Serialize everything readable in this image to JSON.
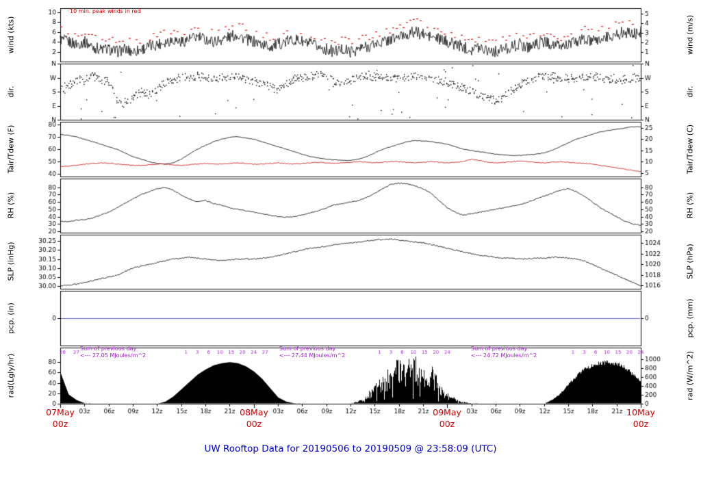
{
  "title": "UW Rooftop Data for 20190506  to  20190509 @ 23:58:09  (UTC)",
  "notes": {
    "peak_winds": "10 min. peak winds in red"
  },
  "colors": {
    "axis": "#000000",
    "trace": "#000000",
    "red": "#cc0000",
    "precip_blue": "#5050cc",
    "date_red": "#cc0000",
    "title_blue": "#0000cc",
    "annotation_purple": "#a21ccc"
  },
  "x_axis": {
    "hours_total": 72,
    "time_tick_labels": [
      "03z",
      "06z",
      "09z",
      "12z",
      "15z",
      "18z",
      "21z"
    ],
    "date_labels": [
      {
        "line1": "07May",
        "line2": "00z",
        "t": 0
      },
      {
        "line1": "08May",
        "line2": "00z",
        "t": 24
      },
      {
        "line1": "09May",
        "line2": "00z",
        "t": 48
      },
      {
        "line1": "10May",
        "line2": "00z",
        "t": 72
      }
    ]
  },
  "panels": [
    {
      "id": "wind",
      "left_label": "wind (kts)",
      "right_label": "wind (m/s)",
      "range": [
        0,
        10.8
      ],
      "left_ticks": [
        {
          "v": 10,
          "label": "10"
        },
        {
          "v": 8,
          "label": "8"
        },
        {
          "v": 6,
          "label": "6"
        },
        {
          "v": 4,
          "label": "4"
        },
        {
          "v": 2,
          "label": "2"
        }
      ],
      "right_ticks": [
        {
          "v": 9.72,
          "label": "5"
        },
        {
          "v": 7.78,
          "label": "4"
        },
        {
          "v": 5.83,
          "label": "3"
        },
        {
          "v": 3.89,
          "label": "2"
        },
        {
          "v": 1.94,
          "label": "1"
        }
      ]
    },
    {
      "id": "dir",
      "left_label": "dir.",
      "right_label": "dir.",
      "range": [
        0,
        360
      ],
      "left_ticks": [
        {
          "v": 360,
          "label": "N"
        },
        {
          "v": 270,
          "label": "W"
        },
        {
          "v": 180,
          "label": "S"
        },
        {
          "v": 90,
          "label": "E"
        },
        {
          "v": 0,
          "label": "N"
        }
      ],
      "right_ticks": [
        {
          "v": 360,
          "label": "N"
        },
        {
          "v": 270,
          "label": "W"
        },
        {
          "v": 180,
          "label": "S"
        },
        {
          "v": 90,
          "label": "E"
        },
        {
          "v": 0,
          "label": "N"
        }
      ]
    },
    {
      "id": "temp",
      "left_label": "Tair/Tdew (F)",
      "right_label": "Tair/Tdew (C)",
      "range": [
        38,
        82
      ],
      "left_ticks": [
        {
          "v": 80,
          "label": "80"
        },
        {
          "v": 70,
          "label": "70"
        },
        {
          "v": 60,
          "label": "60"
        },
        {
          "v": 50,
          "label": "50"
        },
        {
          "v": 40,
          "label": "40"
        }
      ],
      "right_ticks": [
        {
          "v": 77,
          "label": "25"
        },
        {
          "v": 68,
          "label": "20"
        },
        {
          "v": 59,
          "label": "15"
        },
        {
          "v": 50,
          "label": "10"
        },
        {
          "v": 41,
          "label": "5"
        }
      ]
    },
    {
      "id": "rh",
      "left_label": "RH (%)",
      "right_label": "RH (%)",
      "range": [
        18,
        92
      ],
      "left_ticks": [
        {
          "v": 80,
          "label": "80"
        },
        {
          "v": 70,
          "label": "70"
        },
        {
          "v": 60,
          "label": "60"
        },
        {
          "v": 50,
          "label": "50"
        },
        {
          "v": 40,
          "label": "40"
        },
        {
          "v": 30,
          "label": "30"
        },
        {
          "v": 20,
          "label": "20"
        }
      ],
      "right_ticks": [
        {
          "v": 80,
          "label": "80"
        },
        {
          "v": 70,
          "label": "70"
        },
        {
          "v": 60,
          "label": "60"
        },
        {
          "v": 50,
          "label": "50"
        },
        {
          "v": 40,
          "label": "40"
        },
        {
          "v": 30,
          "label": "30"
        },
        {
          "v": 20,
          "label": "20"
        }
      ]
    },
    {
      "id": "slp",
      "left_label": "SLP (inHg)",
      "right_label": "SLP (hPa)",
      "range": [
        29.985,
        30.285
      ],
      "left_ticks": [
        {
          "v": 30.25,
          "label": "30.25"
        },
        {
          "v": 30.2,
          "label": "30.20"
        },
        {
          "v": 30.15,
          "label": "30.15"
        },
        {
          "v": 30.1,
          "label": "30.10"
        },
        {
          "v": 30.05,
          "label": "30.05"
        },
        {
          "v": 30.0,
          "label": "30.00"
        }
      ],
      "right_ticks": [
        {
          "v": 30.2388,
          "label": "1024"
        },
        {
          "v": 30.1797,
          "label": "1022"
        },
        {
          "v": 30.1207,
          "label": "1020"
        },
        {
          "v": 30.0616,
          "label": "1018"
        },
        {
          "v": 30.0025,
          "label": "1016"
        }
      ]
    },
    {
      "id": "pcp",
      "left_label": "pcp. (in)",
      "right_label": "pcp. (mm)",
      "range": [
        -1,
        1
      ],
      "left_ticks": [
        {
          "v": 0,
          "label": "0"
        }
      ],
      "right_ticks": [
        {
          "v": 0,
          "label": "0"
        }
      ]
    },
    {
      "id": "rad",
      "left_label": "rad(Lgly/hr)",
      "right_label": "rad (W/m^2)",
      "range": [
        0,
        108
      ],
      "left_ticks": [
        {
          "v": 80,
          "label": "80"
        },
        {
          "v": 60,
          "label": "60"
        },
        {
          "v": 40,
          "label": "40"
        },
        {
          "v": 20,
          "label": "20"
        },
        {
          "v": 0,
          "label": "0"
        }
      ],
      "right_ticks": [
        {
          "v": 86.0,
          "label": "1000"
        },
        {
          "v": 68.8,
          "label": "800"
        },
        {
          "v": 51.6,
          "label": "600"
        },
        {
          "v": 34.4,
          "label": "400"
        },
        {
          "v": 17.2,
          "label": "200"
        },
        {
          "v": 0,
          "label": "0"
        }
      ]
    }
  ],
  "chart_data": {
    "type": "line",
    "subtype": "meteogram",
    "x_start_hour": 0,
    "x_end_hour": 72,
    "x_step_hours": 1,
    "x_start_date": "07May 00z",
    "series": [
      {
        "name": "wind_speed_kts",
        "panel": "wind",
        "render": "line",
        "color": "#000000",
        "noise": 1.2,
        "values": [
          4.5,
          4,
          3.5,
          4,
          3,
          2.5,
          2.5,
          2,
          2.5,
          2,
          2.5,
          3,
          3.5,
          4,
          4.5,
          4,
          4.5,
          5,
          4.5,
          4,
          4.5,
          5,
          5.5,
          4.5,
          4,
          3.5,
          3,
          3.5,
          4,
          4.5,
          4,
          3.5,
          3,
          2.5,
          2,
          2.5,
          2,
          2.5,
          3,
          3.5,
          4,
          4.5,
          5,
          5.5,
          6,
          5.5,
          5,
          4.5,
          4,
          3.5,
          3,
          2.5,
          3,
          2.5,
          2,
          2.5,
          3,
          3.5,
          3,
          3.5,
          4,
          3.5,
          3,
          3.5,
          4,
          4.5,
          4,
          4.5,
          5,
          5.5,
          6,
          5.5,
          6
        ]
      },
      {
        "name": "peak_wind_kts",
        "panel": "wind",
        "render": "dashes",
        "color": "#cc0000",
        "noise": 0.7,
        "values": [
          6.5,
          6,
          5.5,
          6,
          5,
          4.5,
          4.5,
          4,
          4.5,
          4,
          4.5,
          5,
          5.5,
          6,
          6.5,
          6,
          6.5,
          7.5,
          6.5,
          6,
          6.5,
          7,
          8,
          6.5,
          6,
          5.5,
          5,
          5.5,
          6,
          6.5,
          6,
          5.5,
          5,
          4.5,
          4,
          4.5,
          4,
          4.5,
          5,
          5.5,
          6,
          6.5,
          7,
          8,
          8.5,
          7.5,
          7,
          6.5,
          6,
          5.5,
          5,
          4.5,
          5,
          4.5,
          4,
          4.5,
          5,
          5.5,
          5,
          5.5,
          6,
          5.5,
          5,
          5.5,
          6,
          6.5,
          6,
          6.5,
          7,
          8,
          8.5,
          8,
          8.5
        ]
      },
      {
        "name": "wind_dir_deg",
        "panel": "dir",
        "render": "scatter",
        "color": "#000000",
        "jitter": 26,
        "outlier_rate": 0.08,
        "values": [
          200,
          220,
          250,
          270,
          280,
          260,
          240,
          120,
          100,
          140,
          180,
          160,
          200,
          240,
          260,
          270,
          275,
          280,
          270,
          265,
          270,
          275,
          270,
          260,
          250,
          230,
          210,
          190,
          230,
          260,
          270,
          280,
          290,
          270,
          250,
          230,
          250,
          270,
          280,
          275,
          270,
          265,
          270,
          275,
          280,
          270,
          260,
          250,
          240,
          220,
          200,
          180,
          160,
          140,
          120,
          150,
          190,
          230,
          260,
          270,
          275,
          280,
          270,
          265,
          270,
          275,
          280,
          270,
          260,
          250,
          260,
          270,
          265
        ]
      },
      {
        "name": "tair_f",
        "panel": "temp",
        "render": "line",
        "color": "#000000",
        "noise": 0.25,
        "values": [
          72,
          71,
          70,
          68,
          66,
          64,
          62,
          60,
          57,
          54,
          52,
          50,
          48.5,
          48,
          49,
          52,
          56,
          60,
          63,
          66,
          68,
          69.5,
          70,
          69,
          68,
          66,
          64,
          62,
          60,
          58,
          56,
          54,
          53,
          52,
          51.5,
          51,
          51,
          52,
          54,
          57,
          60,
          62,
          64,
          66,
          67,
          66.5,
          66,
          65,
          64,
          62,
          60,
          59,
          58,
          57,
          56,
          55.5,
          55,
          55,
          55.5,
          56,
          57,
          59,
          62,
          65,
          68,
          70,
          72,
          74,
          75,
          76,
          77,
          78,
          78
        ]
      },
      {
        "name": "tdew_f",
        "panel": "temp",
        "render": "line",
        "color": "#cc0000",
        "noise": 0.35,
        "values": [
          46,
          46.5,
          47,
          48,
          48.5,
          49,
          48.5,
          48,
          47.5,
          47,
          47,
          47.5,
          48,
          48,
          47.5,
          47,
          47.5,
          48,
          48.5,
          48,
          48,
          48.5,
          49,
          48.5,
          48,
          48,
          48.5,
          49,
          48.5,
          48,
          48.5,
          49,
          49.5,
          49,
          48.5,
          49,
          49.5,
          50,
          49.5,
          49,
          49.5,
          50,
          50,
          49.5,
          49,
          49.5,
          50,
          49.5,
          49,
          49.5,
          50,
          52,
          51,
          49.5,
          49,
          49.5,
          50,
          50.5,
          50,
          49.5,
          49,
          49.5,
          50,
          49.5,
          49,
          48.5,
          48,
          47,
          46,
          45,
          44,
          43,
          42
        ]
      },
      {
        "name": "rh_pct",
        "panel": "rh",
        "render": "line",
        "color": "#000000",
        "noise": 0.7,
        "values": [
          34,
          33,
          35,
          36,
          38,
          42,
          46,
          52,
          58,
          64,
          70,
          74,
          78,
          80,
          76,
          70,
          64,
          60,
          62,
          58,
          56,
          52,
          50,
          48,
          46,
          44,
          42,
          40,
          39,
          40,
          42,
          45,
          48,
          52,
          56,
          58,
          60,
          62,
          66,
          72,
          78,
          84,
          86,
          85,
          82,
          78,
          72,
          62,
          52,
          46,
          42,
          44,
          46,
          48,
          50,
          52,
          54,
          56,
          60,
          64,
          68,
          72,
          76,
          78,
          74,
          68,
          60,
          52,
          46,
          40,
          34,
          30,
          28
        ]
      },
      {
        "name": "slp_inhg",
        "panel": "slp",
        "render": "line",
        "color": "#000000",
        "noise": 0.0035,
        "values": [
          30.0,
          30.005,
          30.01,
          30.02,
          30.03,
          30.04,
          30.05,
          30.06,
          30.08,
          30.1,
          30.11,
          30.12,
          30.13,
          30.14,
          30.15,
          30.155,
          30.16,
          30.155,
          30.15,
          30.145,
          30.14,
          30.145,
          30.15,
          30.15,
          30.15,
          30.155,
          30.16,
          30.17,
          30.18,
          30.19,
          30.2,
          30.21,
          30.215,
          30.22,
          30.23,
          30.235,
          30.24,
          30.245,
          30.25,
          30.255,
          30.26,
          30.26,
          30.255,
          30.25,
          30.245,
          30.24,
          30.23,
          30.22,
          30.21,
          30.2,
          30.19,
          30.18,
          30.17,
          30.165,
          30.16,
          30.155,
          30.155,
          30.15,
          30.15,
          30.155,
          30.155,
          30.16,
          30.16,
          30.155,
          30.15,
          30.14,
          30.12,
          30.1,
          30.08,
          30.06,
          30.04,
          30.02,
          30.0
        ]
      },
      {
        "name": "precip_in",
        "panel": "pcp",
        "render": "hline",
        "color": "#5050cc",
        "value": 0
      },
      {
        "name": "solar_rad_ly_hr",
        "panel": "rad",
        "render": "fill",
        "color": "#000000",
        "values": [
          60,
          18,
          7,
          1,
          0,
          0,
          0,
          0,
          0,
          0,
          0,
          0,
          0,
          4,
          14,
          28,
          42,
          56,
          66,
          74,
          78,
          80,
          78,
          72,
          62,
          48,
          30,
          12,
          4,
          1,
          0,
          0,
          0,
          0,
          0,
          0,
          0,
          6,
          18,
          35,
          55,
          70,
          85,
          80,
          88,
          60,
          75,
          40,
          20,
          10,
          4,
          1,
          0,
          0,
          0,
          0,
          0,
          0,
          0,
          0,
          0,
          8,
          20,
          38,
          55,
          68,
          76,
          80,
          82,
          80,
          72,
          58,
          45
        ],
        "noise_windows": [
          {
            "t0": 35,
            "t1": 52,
            "mul_min": 0.38,
            "mul_max": 1.08,
            "dropout_rate": 0.08,
            "dropout_mul": 0.22
          },
          {
            "t0": 60,
            "t1": 72.2,
            "mul_min": 0.92,
            "mul_max": 1.03
          }
        ]
      }
    ],
    "rad_cumulative_ticks": [
      {
        "t": 0.3,
        "label": "26"
      },
      {
        "t": 2.0,
        "label": "27"
      },
      {
        "t": 15.6,
        "label": "1"
      },
      {
        "t": 17.0,
        "label": "3"
      },
      {
        "t": 18.4,
        "label": "6"
      },
      {
        "t": 19.8,
        "label": "10"
      },
      {
        "t": 21.2,
        "label": "15"
      },
      {
        "t": 22.6,
        "label": "20"
      },
      {
        "t": 24.0,
        "label": "24"
      },
      {
        "t": 25.4,
        "label": "27"
      },
      {
        "t": 39.6,
        "label": "1"
      },
      {
        "t": 41.0,
        "label": "3"
      },
      {
        "t": 42.4,
        "label": "6"
      },
      {
        "t": 43.8,
        "label": "10"
      },
      {
        "t": 45.2,
        "label": "15"
      },
      {
        "t": 46.6,
        "label": "20"
      },
      {
        "t": 48.0,
        "label": "24"
      },
      {
        "t": 63.6,
        "label": "1"
      },
      {
        "t": 65.0,
        "label": "3"
      },
      {
        "t": 66.4,
        "label": "6"
      },
      {
        "t": 67.8,
        "label": "10"
      },
      {
        "t": 69.2,
        "label": "15"
      },
      {
        "t": 70.6,
        "label": "20"
      },
      {
        "t": 72.0,
        "label": "24"
      }
    ],
    "rad_sums": [
      {
        "line1": "Sum of previous day",
        "line2": "<--- 27.05 MJoules/m^2"
      },
      {
        "line1": "Sum of previous day",
        "line2": "<--- 27.44 MJoules/m^2"
      },
      {
        "line1": "Sum of previous day",
        "line2": "<--- 24.72 MJoules/m^2"
      }
    ]
  }
}
